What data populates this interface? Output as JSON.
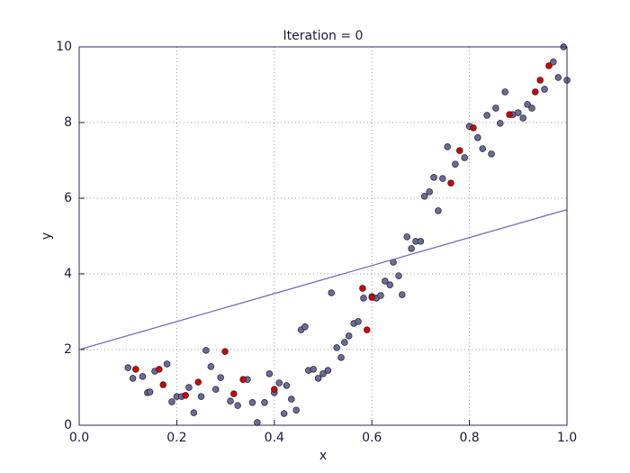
{
  "chart_data": {
    "type": "scatter",
    "title": "Iteration = 0",
    "x_label": "x",
    "y_label": "y",
    "xlim": [
      0,
      1
    ],
    "ylim": [
      0,
      10
    ],
    "xticks": [
      {
        "value": 0,
        "label": "0.0"
      },
      {
        "value": 0.2,
        "label": "0.2"
      },
      {
        "value": 0.4,
        "label": "0.4"
      },
      {
        "value": 0.6,
        "label": "0.6"
      },
      {
        "value": 0.8,
        "label": "0.8"
      },
      {
        "value": 1,
        "label": "1.0"
      }
    ],
    "yticks": [
      0,
      2,
      4,
      6,
      8,
      10
    ],
    "grid": true,
    "series": [
      {
        "mode": "markers",
        "color": "#6a6a9c",
        "x": [
          0.1,
          0.11,
          0.13,
          0.14,
          0.145,
          0.155,
          0.18,
          0.19,
          0.2,
          0.21,
          0.225,
          0.235,
          0.25,
          0.26,
          0.27,
          0.28,
          0.29,
          0.31,
          0.325,
          0.345,
          0.355,
          0.365,
          0.38,
          0.39,
          0.4,
          0.41,
          0.42,
          0.425,
          0.435,
          0.445,
          0.455,
          0.463,
          0.47,
          0.48,
          0.49,
          0.5,
          0.51,
          0.517,
          0.528,
          0.537,
          0.544,
          0.553,
          0.563,
          0.572,
          0.583,
          0.6,
          0.609,
          0.618,
          0.627,
          0.637,
          0.644,
          0.655,
          0.662,
          0.672,
          0.681,
          0.69,
          0.7,
          0.708,
          0.718,
          0.727,
          0.736,
          0.745,
          0.755,
          0.771,
          0.79,
          0.8,
          0.817,
          0.827,
          0.836,
          0.845,
          0.854,
          0.863,
          0.873,
          0.889,
          0.9,
          0.91,
          0.919,
          0.928,
          0.954,
          0.972,
          0.982,
          0.993,
          1.0
        ],
        "values": [
          1.52,
          1.24,
          1.29,
          0.86,
          0.88,
          1.43,
          1.62,
          0.62,
          0.76,
          0.76,
          1.0,
          0.33,
          0.76,
          1.98,
          1.55,
          0.95,
          1.26,
          0.64,
          0.52,
          1.21,
          0.6,
          0.07,
          0.6,
          1.36,
          0.86,
          1.12,
          0.31,
          1.05,
          0.69,
          0.4,
          2.52,
          2.6,
          1.45,
          1.48,
          1.24,
          1.36,
          1.45,
          3.5,
          2.05,
          1.79,
          2.19,
          2.36,
          2.69,
          2.74,
          3.36,
          3.4,
          3.36,
          3.43,
          3.81,
          3.71,
          4.31,
          3.95,
          3.45,
          4.98,
          4.67,
          4.86,
          4.86,
          6.05,
          6.17,
          6.55,
          5.67,
          6.52,
          7.36,
          6.9,
          7.07,
          7.9,
          7.6,
          7.31,
          8.19,
          7.17,
          8.38,
          7.98,
          8.81,
          8.21,
          8.26,
          8.12,
          8.48,
          8.38,
          8.88,
          9.6,
          9.19,
          10.0,
          9.12
        ]
      },
      {
        "mode": "markers",
        "color": "#d40000",
        "x": [
          0.116,
          0.164,
          0.172,
          0.218,
          0.244,
          0.299,
          0.317,
          0.336,
          0.4,
          0.581,
          0.59,
          0.6,
          0.762,
          0.78,
          0.808,
          0.882,
          0.935,
          0.945,
          0.963
        ],
        "values": [
          1.48,
          1.48,
          1.07,
          0.79,
          1.14,
          1.95,
          0.83,
          1.21,
          0.95,
          3.62,
          2.52,
          3.38,
          6.4,
          7.26,
          7.86,
          8.21,
          8.81,
          9.12,
          9.5
        ]
      },
      {
        "mode": "lines",
        "color": "#6f6fb8",
        "x": [
          0,
          1
        ],
        "values": [
          2.0,
          5.7
        ]
      }
    ]
  }
}
